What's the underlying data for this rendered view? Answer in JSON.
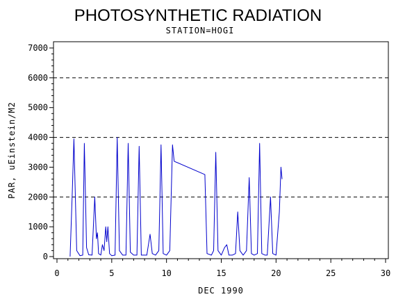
{
  "chart_data": {
    "type": "line",
    "title": "PHOTOSYNTHETIC RADIATION",
    "subtitle": "STATION=HOGI",
    "xlabel": "DEC 1990",
    "ylabel": "PAR, uEinstein/M2",
    "xlim": [
      0,
      30
    ],
    "ylim": [
      0,
      7000
    ],
    "x_ticks": [
      0,
      5,
      10,
      15,
      20,
      25,
      30
    ],
    "y_ticks": [
      0,
      1000,
      2000,
      3000,
      4000,
      5000,
      6000,
      7000
    ],
    "reference_lines": [
      2000,
      4000,
      6000
    ],
    "grid": false,
    "legend": "none",
    "line_color": "#0000cc",
    "series": [
      {
        "points": [
          [
            1.2,
            0
          ],
          [
            1.4,
            2200
          ],
          [
            1.55,
            3950
          ],
          [
            1.8,
            200
          ],
          [
            2.1,
            30
          ],
          [
            2.35,
            50
          ],
          [
            2.5,
            3800
          ],
          [
            2.7,
            300
          ],
          [
            2.9,
            60
          ],
          [
            3.2,
            50
          ],
          [
            3.45,
            2000
          ],
          [
            3.6,
            600
          ],
          [
            3.7,
            800
          ],
          [
            3.8,
            100
          ],
          [
            4.0,
            50
          ],
          [
            4.15,
            400
          ],
          [
            4.3,
            200
          ],
          [
            4.45,
            1000
          ],
          [
            4.55,
            500
          ],
          [
            4.65,
            1000
          ],
          [
            4.8,
            100
          ],
          [
            5.0,
            30
          ],
          [
            5.3,
            50
          ],
          [
            5.5,
            4000
          ],
          [
            5.7,
            200
          ],
          [
            6.0,
            50
          ],
          [
            6.3,
            50
          ],
          [
            6.5,
            3800
          ],
          [
            6.7,
            150
          ],
          [
            7.0,
            50
          ],
          [
            7.3,
            50
          ],
          [
            7.5,
            3700
          ],
          [
            7.7,
            50
          ],
          [
            8.2,
            50
          ],
          [
            8.5,
            750
          ],
          [
            8.7,
            100
          ],
          [
            9.0,
            50
          ],
          [
            9.3,
            200
          ],
          [
            9.5,
            3750
          ],
          [
            9.7,
            100
          ],
          [
            10.0,
            50
          ],
          [
            10.3,
            200
          ],
          [
            10.55,
            3750
          ],
          [
            10.7,
            3200
          ],
          [
            13.5,
            2750
          ],
          [
            13.7,
            100
          ],
          [
            14.1,
            50
          ],
          [
            14.3,
            200
          ],
          [
            14.5,
            3500
          ],
          [
            14.7,
            200
          ],
          [
            15.0,
            50
          ],
          [
            15.3,
            300
          ],
          [
            15.5,
            400
          ],
          [
            15.7,
            50
          ],
          [
            16.0,
            50
          ],
          [
            16.3,
            100
          ],
          [
            16.5,
            1500
          ],
          [
            16.7,
            200
          ],
          [
            17.0,
            50
          ],
          [
            17.3,
            200
          ],
          [
            17.55,
            2650
          ],
          [
            17.75,
            100
          ],
          [
            18.0,
            50
          ],
          [
            18.3,
            100
          ],
          [
            18.5,
            3800
          ],
          [
            18.7,
            100
          ],
          [
            19.0,
            50
          ],
          [
            19.2,
            50
          ],
          [
            19.5,
            2000
          ],
          [
            19.7,
            100
          ],
          [
            20.0,
            50
          ],
          [
            20.3,
            1500
          ],
          [
            20.45,
            3000
          ],
          [
            20.55,
            2600
          ]
        ]
      }
    ]
  }
}
